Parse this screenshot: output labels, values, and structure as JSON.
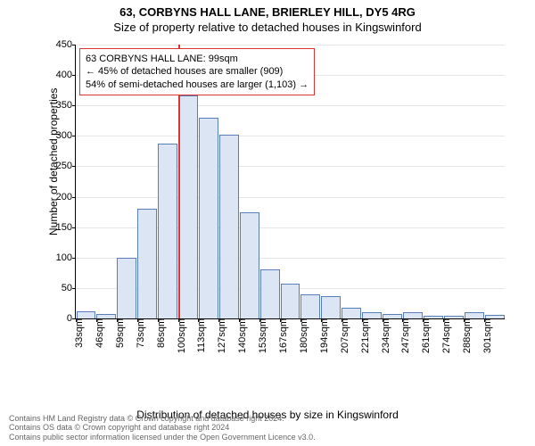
{
  "title_main": "63, CORBYNS HALL LANE, BRIERLEY HILL, DY5 4RG",
  "title_sub": "Size of property relative to detached houses in Kingswinford",
  "ylabel": "Number of detached properties",
  "xlabel": "Distribution of detached houses by size in Kingswinford",
  "footer_line1": "Contains HM Land Registry data © Crown copyright and database right 2024.",
  "footer_line2": "Contains OS data © Crown copyright and database right 2024",
  "footer_line3": "Contains public sector information licensed under the Open Government Licence v3.0.",
  "chart": {
    "type": "histogram",
    "ylim": [
      0,
      450
    ],
    "ytick_step": 50,
    "yticks": [
      0,
      50,
      100,
      150,
      200,
      250,
      300,
      350,
      400,
      450
    ],
    "grid_color": "#e6e6e6",
    "bar_fill": "#dbe5f3",
    "bar_stroke": "#5a7fb8",
    "background": "#ffffff",
    "label_fontsize": 12,
    "tick_fontsize": 11,
    "title_fontsize": 13,
    "x_labels": [
      "33sqm",
      "46sqm",
      "59sqm",
      "73sqm",
      "86sqm",
      "100sqm",
      "113sqm",
      "127sqm",
      "140sqm",
      "153sqm",
      "167sqm",
      "180sqm",
      "194sqm",
      "207sqm",
      "221sqm",
      "234sqm",
      "247sqm",
      "261sqm",
      "274sqm",
      "288sqm",
      "301sqm"
    ],
    "values": [
      12,
      8,
      100,
      180,
      288,
      367,
      330,
      302,
      175,
      80,
      57,
      39,
      36,
      18,
      10,
      8,
      10,
      5,
      4,
      10,
      6
    ],
    "marker": {
      "line_color": "#d33",
      "position_index": 5,
      "annot_border": "#d33",
      "annot_bg": "#ffffff",
      "annot_line1": "63 CORBYNS HALL LANE: 99sqm",
      "annot_line2": "← 45% of detached houses are smaller (909)",
      "annot_line3": "54% of semi-detached houses are larger (1,103) →"
    }
  }
}
